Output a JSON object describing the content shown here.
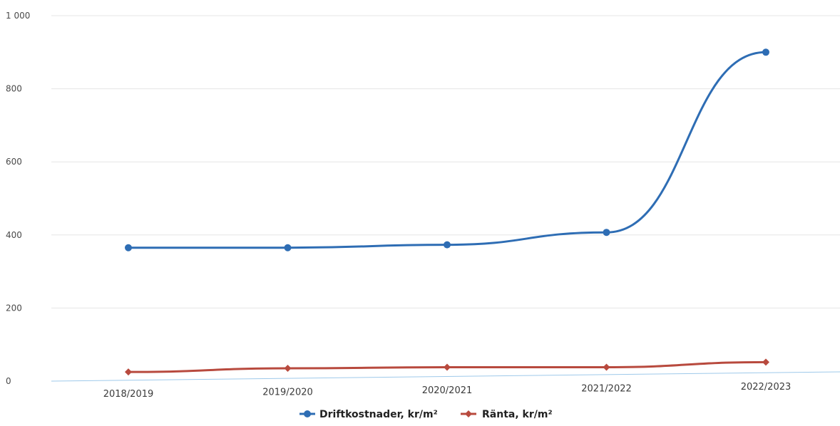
{
  "chart_data": {
    "type": "line",
    "categories": [
      "2018/2019",
      "2019/2020",
      "2020/2021",
      "2021/2022",
      "2022/2023"
    ],
    "series": [
      {
        "name": "Driftkostnader, kr/m²",
        "values": [
          365,
          365,
          373,
          407,
          900
        ],
        "color": "#2e6db4",
        "marker": "circle"
      },
      {
        "name": "Ränta, kr/m²",
        "values": [
          25,
          35,
          38,
          38,
          52
        ],
        "color": "#b84a3e",
        "marker": "diamond"
      }
    ],
    "y_ticks": [
      {
        "value": 0,
        "label": "0"
      },
      {
        "value": 200,
        "label": "200"
      },
      {
        "value": 400,
        "label": "400"
      },
      {
        "value": 600,
        "label": "600"
      },
      {
        "value": 800,
        "label": "800"
      },
      {
        "value": 1000,
        "label": "1 000"
      }
    ],
    "ylim": [
      0,
      1000
    ],
    "grid": true,
    "legend_position": "bottom-center",
    "axis_color": "#9ec9ea"
  }
}
